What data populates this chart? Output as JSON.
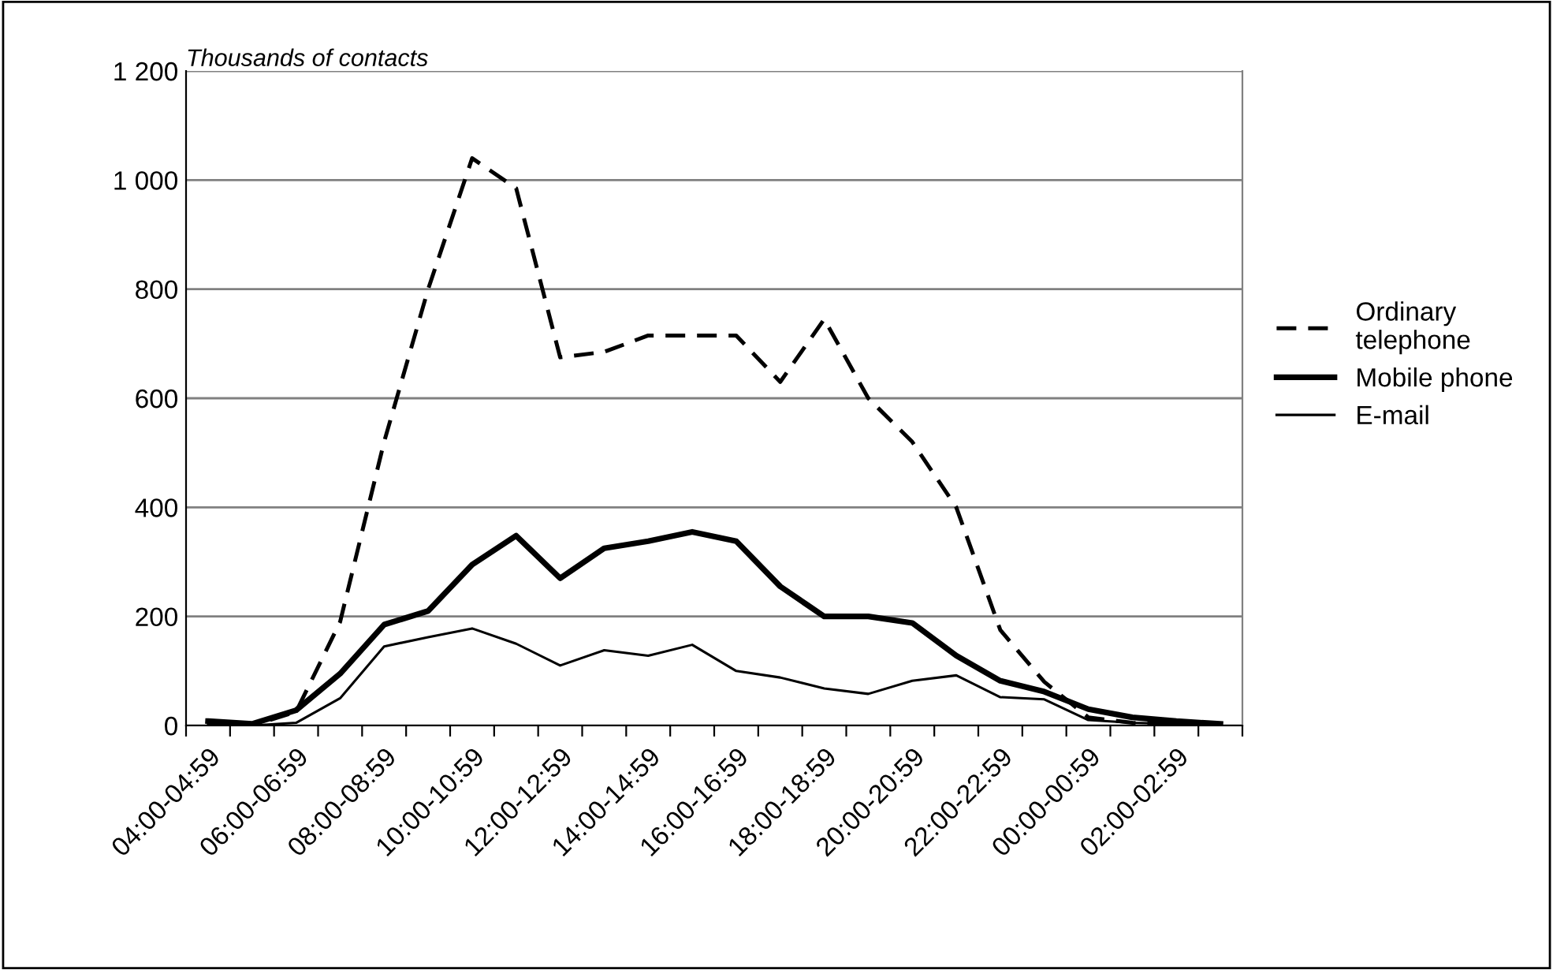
{
  "chart_data": {
    "type": "line",
    "ylabel": "Thousands of contacts",
    "categories": [
      "04:00-04:59",
      null,
      "06:00-06:59",
      null,
      "08:00-08:59",
      null,
      "10:00-10:59",
      null,
      "12:00-12:59",
      null,
      "14:00-14:59",
      null,
      "16:00-16:59",
      null,
      "18:00-18:59",
      null,
      "20:00-20:59",
      null,
      "22:00-22:59",
      null,
      "00:00-00:59",
      null,
      "02:00-02:59",
      null
    ],
    "series": [
      {
        "name": "Ordinary\ntelephone",
        "color": "#000000",
        "line_style": "dashed",
        "values": [
          5,
          0,
          25,
          190,
          520,
          800,
          1040,
          985,
          675,
          685,
          715,
          715,
          715,
          630,
          745,
          600,
          520,
          400,
          175,
          80,
          15,
          5,
          3,
          2
        ]
      },
      {
        "name": "Mobile phone",
        "color": "#000000",
        "line_style": "solid",
        "values": [
          8,
          3,
          28,
          95,
          185,
          210,
          295,
          348,
          270,
          325,
          338,
          355,
          338,
          255,
          200,
          200,
          188,
          128,
          82,
          62,
          30,
          15,
          8,
          3
        ]
      },
      {
        "name": "E-mail",
        "color": "#000000",
        "line_style": "solid",
        "values": [
          3,
          0,
          5,
          50,
          145,
          162,
          178,
          150,
          110,
          138,
          128,
          148,
          100,
          88,
          68,
          58,
          82,
          92,
          52,
          48,
          10,
          5,
          3,
          2
        ]
      }
    ],
    "ylim": [
      0,
      1200
    ],
    "yticks": [
      0,
      200,
      400,
      600,
      800,
      {
        "value": 1000,
        "label": "1 000"
      },
      {
        "value": 1200,
        "label": "1 200"
      }
    ],
    "grid": "y",
    "legend": "right",
    "marker": "none"
  }
}
